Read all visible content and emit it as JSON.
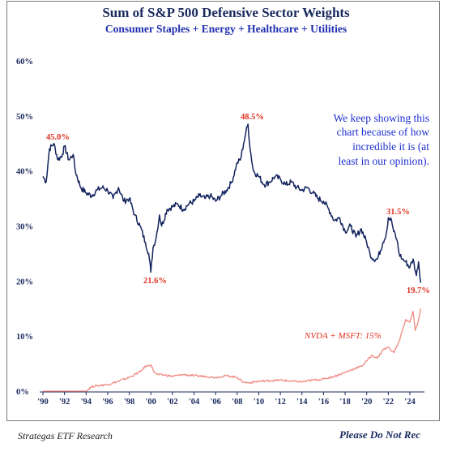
{
  "chart_data": {
    "type": "line",
    "title": "Sum of S&P 500 Defensive Sector Weights",
    "subtitle": "Consumer Staples + Energy + Healthcare + Utilities",
    "y_ticks": [
      "0%",
      "10%",
      "20%",
      "30%",
      "40%",
      "50%",
      "60%"
    ],
    "ylim": [
      0,
      60
    ],
    "x_ticks": [
      "'90",
      "'92",
      "'94",
      "'96",
      "'98",
      "'00",
      "'02",
      "'04",
      "'06",
      "'08",
      "'10",
      "'12",
      "'14",
      "'16",
      "'18",
      "'20",
      "'22",
      "'24"
    ],
    "xlim": [
      1990,
      2025.2
    ],
    "grid": false,
    "series": [
      {
        "color": "#13245e",
        "x": [
          1990.0,
          1990.3,
          1990.6,
          1991.0,
          1991.4,
          1991.8,
          1992.0,
          1992.4,
          1992.8,
          1993.0,
          1993.5,
          1994.0,
          1994.5,
          1995.0,
          1995.5,
          1996.0,
          1996.5,
          1997.0,
          1997.5,
          1998.0,
          1998.5,
          1999.0,
          1999.5,
          1999.8,
          2000.0,
          2000.2,
          2000.5,
          2000.8,
          2001.0,
          2001.5,
          2002.0,
          2002.5,
          2003.0,
          2003.5,
          2004.0,
          2004.5,
          2005.0,
          2005.5,
          2006.0,
          2006.5,
          2007.0,
          2007.5,
          2008.0,
          2008.3,
          2008.6,
          2008.8,
          2009.0,
          2009.2,
          2009.5,
          2010.0,
          2010.5,
          2011.0,
          2011.5,
          2012.0,
          2012.5,
          2013.0,
          2013.5,
          2014.0,
          2014.5,
          2015.0,
          2015.5,
          2016.0,
          2016.5,
          2017.0,
          2017.5,
          2018.0,
          2018.5,
          2019.0,
          2019.5,
          2020.0,
          2020.3,
          2020.6,
          2021.0,
          2021.5,
          2021.8,
          2022.0,
          2022.3,
          2022.5,
          2022.8,
          2023.0,
          2023.3,
          2023.6,
          2024.0,
          2024.3,
          2024.6,
          2024.8,
          2025.0
        ],
        "y": [
          39.0,
          38.0,
          44.0,
          45.0,
          42.0,
          43.0,
          44.5,
          42.0,
          43.0,
          40.0,
          37.0,
          36.0,
          35.5,
          36.5,
          37.0,
          36.5,
          35.0,
          37.0,
          34.5,
          35.0,
          32.0,
          30.0,
          27.0,
          25.0,
          21.6,
          26.0,
          28.0,
          32.0,
          30.0,
          33.0,
          33.5,
          34.0,
          33.0,
          34.0,
          34.5,
          35.5,
          35.0,
          35.5,
          34.5,
          35.5,
          36.5,
          38.0,
          41.5,
          42.0,
          45.0,
          47.0,
          48.5,
          44.0,
          40.0,
          39.0,
          37.5,
          38.0,
          39.0,
          38.5,
          37.5,
          38.0,
          37.0,
          36.5,
          37.0,
          36.0,
          35.0,
          34.5,
          33.0,
          31.0,
          31.5,
          29.0,
          30.0,
          28.0,
          29.5,
          27.0,
          25.0,
          24.0,
          24.0,
          27.0,
          28.5,
          31.5,
          31.0,
          29.0,
          27.5,
          25.0,
          24.0,
          23.5,
          22.5,
          24.0,
          21.0,
          23.5,
          19.7
        ]
      },
      {
        "name": "NVDA + MSFT: 15%",
        "color": "#f08a80",
        "x": [
          1990.0,
          1994.0,
          1994.5,
          1995.0,
          1996.0,
          1997.0,
          1998.0,
          1999.0,
          1999.5,
          2000.0,
          2000.3,
          2000.6,
          2001.0,
          2002.0,
          2003.0,
          2004.0,
          2005.0,
          2006.0,
          2007.0,
          2008.0,
          2008.5,
          2009.0,
          2010.0,
          2011.0,
          2012.0,
          2013.0,
          2014.0,
          2015.0,
          2016.0,
          2017.0,
          2018.0,
          2019.0,
          2019.5,
          2020.0,
          2020.5,
          2021.0,
          2021.5,
          2022.0,
          2022.5,
          2023.0,
          2023.3,
          2023.6,
          2024.0,
          2024.3,
          2024.5,
          2024.7,
          2025.0
        ],
        "y": [
          0.0,
          0.0,
          0.8,
          1.0,
          1.2,
          1.8,
          2.5,
          3.5,
          4.5,
          4.8,
          3.5,
          3.0,
          3.0,
          2.7,
          3.0,
          2.8,
          2.7,
          2.5,
          2.8,
          2.5,
          1.7,
          1.5,
          1.8,
          1.9,
          2.0,
          1.8,
          1.7,
          2.0,
          2.2,
          2.7,
          3.4,
          4.2,
          4.5,
          5.5,
          6.5,
          6.0,
          7.5,
          8.0,
          7.0,
          9.0,
          11.0,
          13.0,
          12.5,
          14.5,
          11.0,
          12.0,
          15.0
        ]
      }
    ],
    "annotations": [
      "45.0%",
      "21.6%",
      "48.5%",
      "31.5%",
      "19.7%"
    ],
    "note_lines": [
      "We keep showing this",
      "chart because of how",
      "incredible it is (at",
      "least in our opinion)."
    ]
  },
  "footer": {
    "source": "Strategas ETF Research",
    "disclaimer": "Please Do Not Rec"
  }
}
